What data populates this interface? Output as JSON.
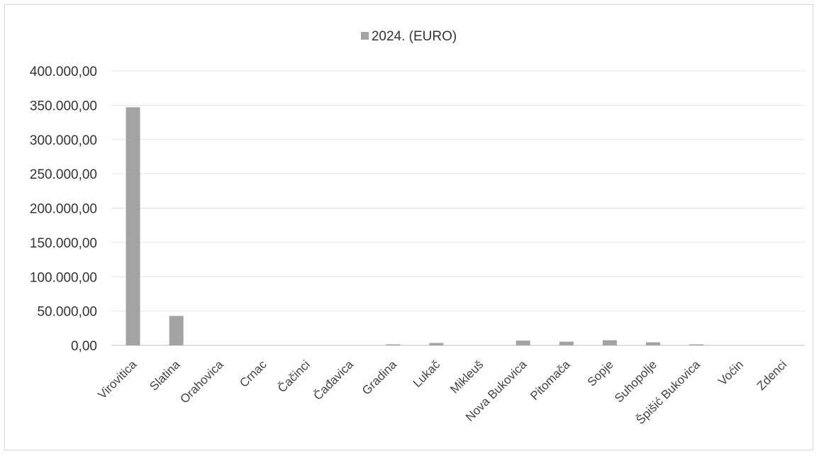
{
  "chart_data": {
    "type": "bar",
    "title": "",
    "xlabel": "",
    "ylabel": "",
    "legend": {
      "position": "top"
    },
    "grid": true,
    "ylim": [
      0,
      400000
    ],
    "y_ticks": [
      0,
      50000,
      100000,
      150000,
      200000,
      250000,
      300000,
      350000,
      400000
    ],
    "y_tick_labels": [
      "0,00",
      "50.000,00",
      "100.000,00",
      "150.000,00",
      "200.000,00",
      "250.000,00",
      "300.000,00",
      "350.000,00",
      "400.000,00"
    ],
    "categories": [
      "Virovitica",
      "Slatina",
      "Orahovica",
      "Crnac",
      "Čačinci",
      "Čađavica",
      "Gradina",
      "Lukač",
      "Mikleuš",
      "Nova Bukovica",
      "Pitomača",
      "Sopje",
      "Suhopolje",
      "Špišić Bukovica",
      "Voćin",
      "Zdenci"
    ],
    "series": [
      {
        "name": "2024. (EURO)",
        "color": "#a3a3a3",
        "values": [
          347000,
          43000,
          0,
          0,
          0,
          0,
          1500,
          3500,
          0,
          7000,
          5500,
          7500,
          4500,
          1500,
          0,
          0
        ]
      }
    ]
  }
}
